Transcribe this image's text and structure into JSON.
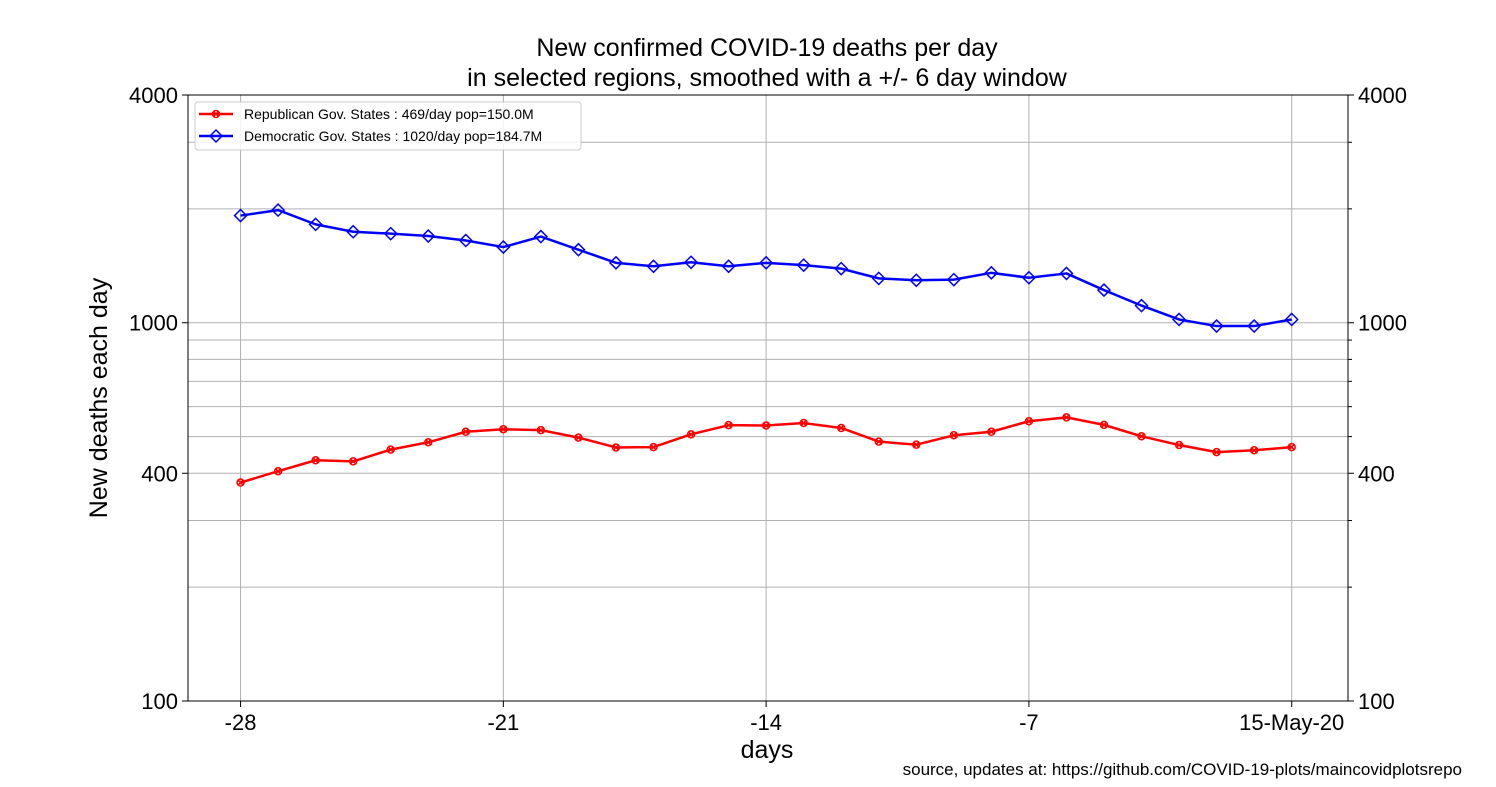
{
  "chart_data": {
    "type": "line",
    "title": "New confirmed COVID-19 deaths per day",
    "subtitle": "in selected regions, smoothed with a +/- 6 day window",
    "xlabel": "days",
    "ylabel": "New deaths each day",
    "yscale": "log",
    "ylim": [
      100,
      4000
    ],
    "xlim": [
      -29.4,
      1.5
    ],
    "grid": true,
    "legend_position": "top-left",
    "x_ticks": [
      {
        "value": -28,
        "label": "-28"
      },
      {
        "value": -21,
        "label": "-21"
      },
      {
        "value": -14,
        "label": "-14"
      },
      {
        "value": -7,
        "label": "-7"
      },
      {
        "value": 0,
        "label": "15-May-20"
      }
    ],
    "y_ticks": [
      {
        "value": 100,
        "label": "100"
      },
      {
        "value": 400,
        "label": "400"
      },
      {
        "value": 1000,
        "label": "1000"
      },
      {
        "value": 4000,
        "label": "4000"
      }
    ],
    "y_minor_grid": [
      200,
      300,
      500,
      600,
      700,
      800,
      900,
      2000,
      3000
    ],
    "x": [
      -28,
      -27,
      -26,
      -25,
      -24,
      -23,
      -22,
      -21,
      -20,
      -19,
      -18,
      -17,
      -16,
      -15,
      -14,
      -13,
      -12,
      -11,
      -10,
      -9,
      -8,
      -7,
      -6,
      -5,
      -4,
      -3,
      -2,
      -1,
      0
    ],
    "series": [
      {
        "name": "Republican Gov. States : 469/day pop=150.0M",
        "color": "#ff0000",
        "marker": "x-circle",
        "values": [
          378,
          405,
          433,
          430,
          462,
          483,
          515,
          523,
          520,
          497,
          468,
          469,
          507,
          536,
          535,
          543,
          527,
          485,
          476,
          504,
          515,
          549,
          562,
          537,
          501,
          475,
          455,
          460,
          469
        ]
      },
      {
        "name": "Democratic Gov. States : 1020/day pop=184.7M",
        "color": "#0000ff",
        "marker": "diamond",
        "values": [
          1920,
          1985,
          1820,
          1740,
          1720,
          1695,
          1650,
          1585,
          1690,
          1560,
          1440,
          1410,
          1445,
          1410,
          1440,
          1420,
          1390,
          1310,
          1295,
          1300,
          1355,
          1315,
          1350,
          1220,
          1110,
          1020,
          980,
          980,
          1020
        ]
      }
    ]
  },
  "source": "source, updates at: https://github.com/COVID-19-plots/maincovidplotsrepo"
}
